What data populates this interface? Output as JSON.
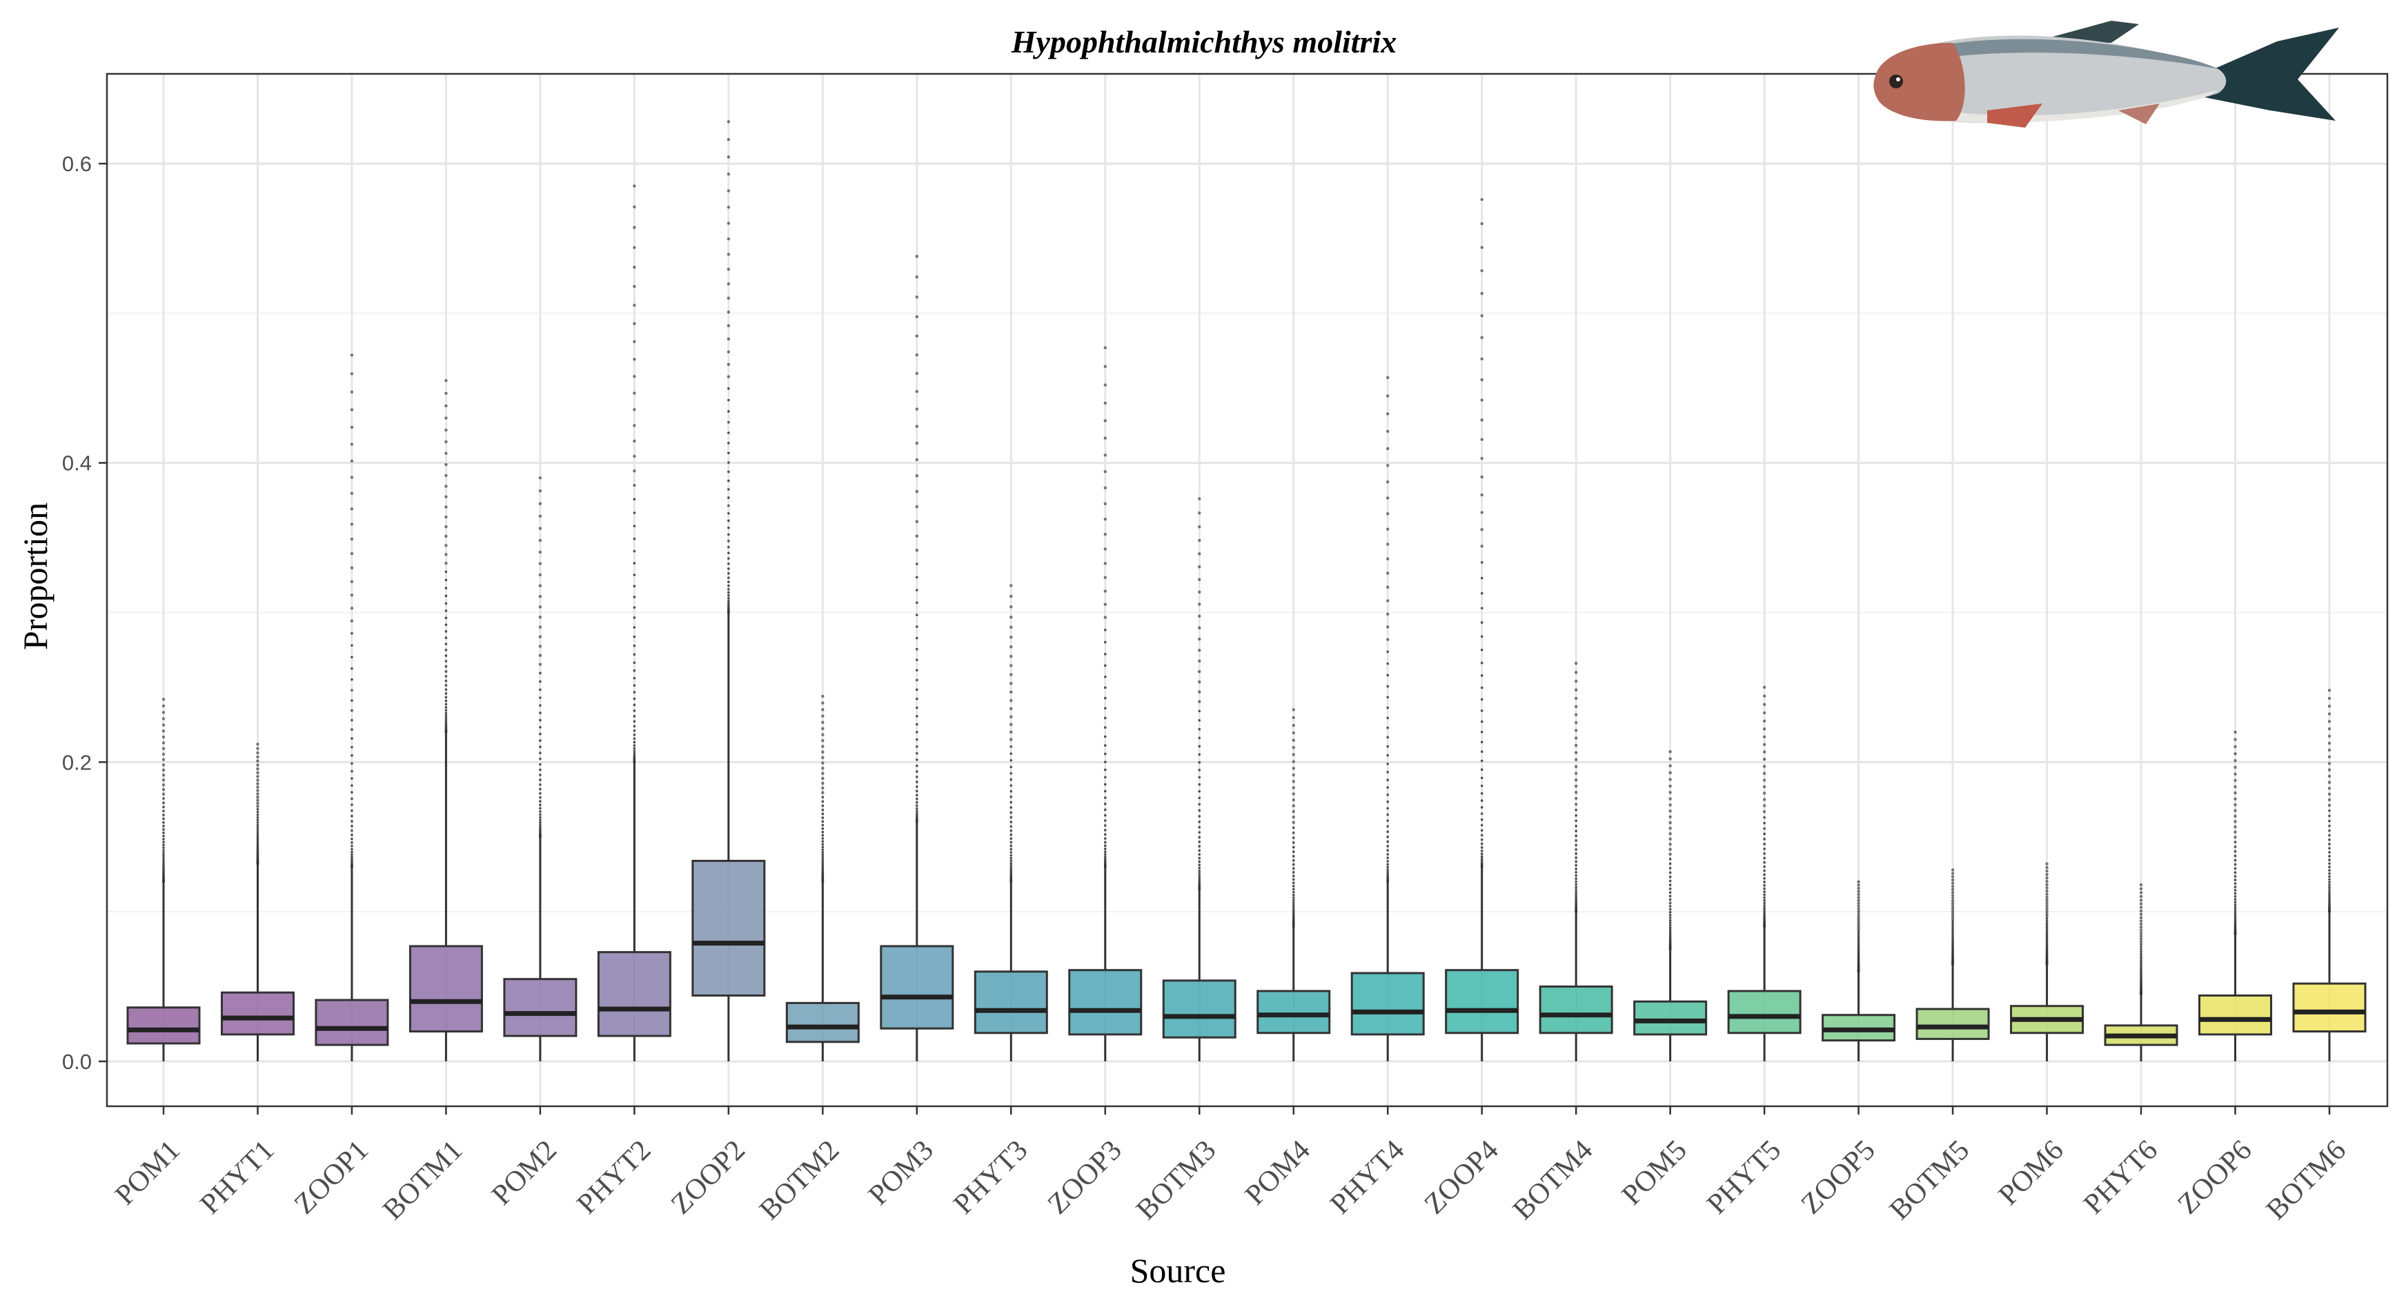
{
  "chart_data": {
    "type": "boxplot",
    "title": "Hypophthalmichthys molitrix",
    "xlabel": "Source",
    "ylabel": "Proportion",
    "ylim": [
      -0.03,
      0.66
    ],
    "yticks": [
      0.0,
      0.2,
      0.4,
      0.6
    ],
    "ytick_labels": [
      "0.0",
      "0.2",
      "0.4",
      "0.6"
    ],
    "grid": true,
    "categories": [
      "POM1",
      "PHYT1",
      "ZOOP1",
      "BOTM1",
      "POM2",
      "PHYT2",
      "ZOOP2",
      "BOTM2",
      "POM3",
      "PHYT3",
      "ZOOP3",
      "BOTM3",
      "POM4",
      "PHYT4",
      "ZOOP4",
      "BOTM4",
      "POM5",
      "PHYT5",
      "ZOOP5",
      "BOTM5",
      "POM6",
      "PHYT6",
      "ZOOP6",
      "BOTM6"
    ],
    "colors": [
      "#8d5b9a",
      "#8e5f9d",
      "#8b61a0",
      "#8a68a6",
      "#8871a8",
      "#8378aa",
      "#7a8dac",
      "#6a9ab2",
      "#5d9ab4",
      "#4e9eb2",
      "#45a2b1",
      "#3ea5af",
      "#3aaaad",
      "#35aeaa",
      "#34b3a5",
      "#3bb79f",
      "#49bc98",
      "#5ec290",
      "#7bc986",
      "#98cf78",
      "#b3d569",
      "#cfdb5a",
      "#e6e257",
      "#f4e45a"
    ],
    "boxes": [
      {
        "q1": 0.012,
        "median": 0.021,
        "q3": 0.036,
        "whisker_low": 0.0,
        "whisker_high": 0.12,
        "outlier_max": 0.242
      },
      {
        "q1": 0.018,
        "median": 0.029,
        "q3": 0.046,
        "whisker_low": 0.0,
        "whisker_high": 0.132,
        "outlier_max": 0.212
      },
      {
        "q1": 0.011,
        "median": 0.022,
        "q3": 0.041,
        "whisker_low": 0.0,
        "whisker_high": 0.13,
        "outlier_max": 0.472
      },
      {
        "q1": 0.02,
        "median": 0.04,
        "q3": 0.077,
        "whisker_low": 0.0,
        "whisker_high": 0.22,
        "outlier_max": 0.455
      },
      {
        "q1": 0.017,
        "median": 0.032,
        "q3": 0.055,
        "whisker_low": 0.0,
        "whisker_high": 0.15,
        "outlier_max": 0.39
      },
      {
        "q1": 0.017,
        "median": 0.035,
        "q3": 0.073,
        "whisker_low": 0.0,
        "whisker_high": 0.2,
        "outlier_max": 0.585
      },
      {
        "q1": 0.044,
        "median": 0.079,
        "q3": 0.134,
        "whisker_low": 0.0,
        "whisker_high": 0.3,
        "outlier_max": 0.628
      },
      {
        "q1": 0.013,
        "median": 0.023,
        "q3": 0.039,
        "whisker_low": 0.0,
        "whisker_high": 0.12,
        "outlier_max": 0.244
      },
      {
        "q1": 0.022,
        "median": 0.043,
        "q3": 0.077,
        "whisker_low": 0.0,
        "whisker_high": 0.16,
        "outlier_max": 0.538
      },
      {
        "q1": 0.019,
        "median": 0.034,
        "q3": 0.06,
        "whisker_low": 0.0,
        "whisker_high": 0.12,
        "outlier_max": 0.318
      },
      {
        "q1": 0.018,
        "median": 0.034,
        "q3": 0.061,
        "whisker_low": 0.0,
        "whisker_high": 0.13,
        "outlier_max": 0.477
      },
      {
        "q1": 0.016,
        "median": 0.03,
        "q3": 0.054,
        "whisker_low": 0.0,
        "whisker_high": 0.115,
        "outlier_max": 0.376
      },
      {
        "q1": 0.019,
        "median": 0.031,
        "q3": 0.047,
        "whisker_low": 0.0,
        "whisker_high": 0.09,
        "outlier_max": 0.235
      },
      {
        "q1": 0.018,
        "median": 0.033,
        "q3": 0.059,
        "whisker_low": 0.0,
        "whisker_high": 0.12,
        "outlier_max": 0.457
      },
      {
        "q1": 0.019,
        "median": 0.034,
        "q3": 0.061,
        "whisker_low": 0.0,
        "whisker_high": 0.13,
        "outlier_max": 0.576
      },
      {
        "q1": 0.019,
        "median": 0.031,
        "q3": 0.05,
        "whisker_low": 0.0,
        "whisker_high": 0.1,
        "outlier_max": 0.266
      },
      {
        "q1": 0.018,
        "median": 0.027,
        "q3": 0.04,
        "whisker_low": 0.0,
        "whisker_high": 0.075,
        "outlier_max": 0.207
      },
      {
        "q1": 0.019,
        "median": 0.03,
        "q3": 0.047,
        "whisker_low": 0.0,
        "whisker_high": 0.09,
        "outlier_max": 0.25
      },
      {
        "q1": 0.014,
        "median": 0.021,
        "q3": 0.031,
        "whisker_low": 0.0,
        "whisker_high": 0.06,
        "outlier_max": 0.12
      },
      {
        "q1": 0.015,
        "median": 0.023,
        "q3": 0.035,
        "whisker_low": 0.0,
        "whisker_high": 0.065,
        "outlier_max": 0.128
      },
      {
        "q1": 0.019,
        "median": 0.028,
        "q3": 0.037,
        "whisker_low": 0.0,
        "whisker_high": 0.065,
        "outlier_max": 0.132
      },
      {
        "q1": 0.011,
        "median": 0.017,
        "q3": 0.024,
        "whisker_low": 0.0,
        "whisker_high": 0.045,
        "outlier_max": 0.118
      },
      {
        "q1": 0.018,
        "median": 0.028,
        "q3": 0.044,
        "whisker_low": 0.0,
        "whisker_high": 0.085,
        "outlier_max": 0.22
      },
      {
        "q1": 0.02,
        "median": 0.033,
        "q3": 0.052,
        "whisker_low": 0.0,
        "whisker_high": 0.1,
        "outlier_max": 0.248
      }
    ]
  }
}
